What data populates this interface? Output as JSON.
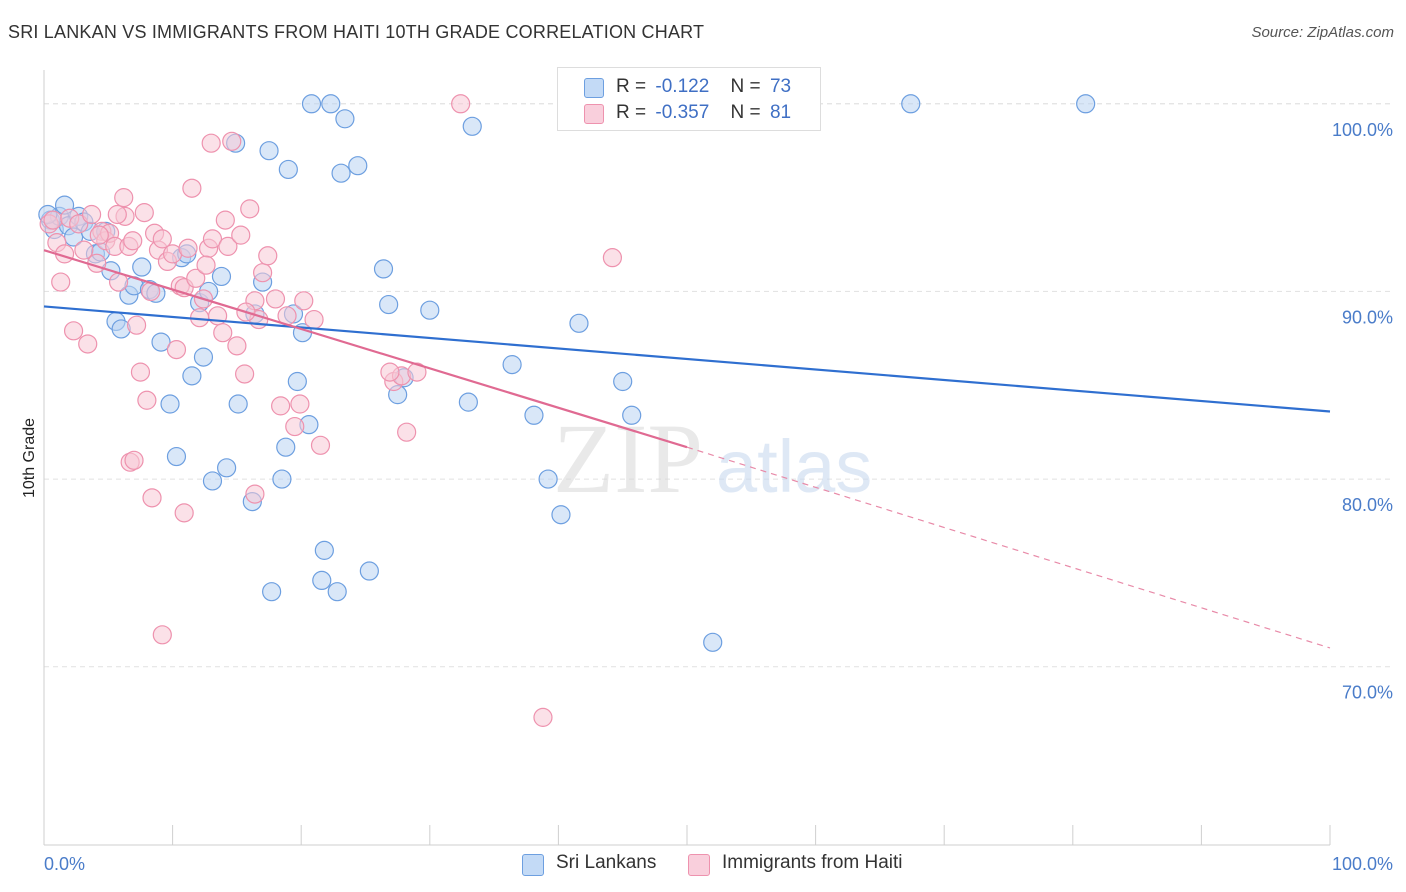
{
  "title": "SRI LANKAN VS IMMIGRANTS FROM HAITI 10TH GRADE CORRELATION CHART",
  "source": "Source: ZipAtlas.com",
  "watermark": {
    "zip": "ZIP",
    "atlas": "atlas"
  },
  "legend_top": {
    "rows": [
      {
        "r_label": "R =",
        "r_value": "-0.122",
        "n_label": "N =",
        "n_value": "73",
        "color": "#a9c8f0"
      },
      {
        "r_label": "R =",
        "r_value": "-0.357",
        "n_label": "N =",
        "n_value": "81",
        "color": "#f5b8cb"
      }
    ]
  },
  "legend_bottom": {
    "items": [
      {
        "label": "Sri Lankans",
        "color": "#a9c8f0"
      },
      {
        "label": "Immigrants from Haiti",
        "color": "#f5b8cb"
      }
    ]
  },
  "chart_data": {
    "type": "scatter",
    "title": "SRI LANKAN VS IMMIGRANTS FROM HAITI 10TH GRADE CORRELATION CHART",
    "xlabel": "",
    "ylabel": "10th Grade",
    "xlim": [
      0,
      100
    ],
    "ylim": [
      60.5,
      101.8
    ],
    "x_tick_labels": [
      "0.0%",
      "100.0%"
    ],
    "y_ticks": [
      70,
      80,
      90,
      100
    ],
    "y_tick_labels": [
      "70.0%",
      "80.0%",
      "90.0%",
      "100.0%"
    ],
    "grid": true,
    "legend_position": "top-center",
    "series": [
      {
        "name": "Sri Lankans",
        "color": "#6d9fe0",
        "fill": "#b9d3f3",
        "points": [
          [
            0.5,
            93.8
          ],
          [
            0.8,
            93.3
          ],
          [
            1.2,
            94.0
          ],
          [
            1.6,
            94.6
          ],
          [
            1.9,
            93.5
          ],
          [
            2.3,
            92.9
          ],
          [
            2.7,
            94.0
          ],
          [
            3.1,
            93.7
          ],
          [
            3.6,
            93.2
          ],
          [
            4.0,
            92.0
          ],
          [
            4.4,
            92.1
          ],
          [
            4.8,
            93.2
          ],
          [
            5.2,
            91.1
          ],
          [
            5.6,
            88.4
          ],
          [
            6.0,
            88.0
          ],
          [
            6.6,
            89.8
          ],
          [
            7.0,
            90.3
          ],
          [
            7.6,
            91.3
          ],
          [
            8.2,
            90.1
          ],
          [
            8.7,
            89.9
          ],
          [
            9.1,
            87.3
          ],
          [
            9.8,
            84.0
          ],
          [
            10.3,
            81.2
          ],
          [
            10.7,
            91.8
          ],
          [
            11.1,
            92.0
          ],
          [
            11.5,
            85.5
          ],
          [
            12.1,
            89.4
          ],
          [
            12.4,
            86.5
          ],
          [
            12.8,
            90.0
          ],
          [
            13.1,
            79.9
          ],
          [
            13.8,
            90.8
          ],
          [
            14.2,
            80.6
          ],
          [
            14.9,
            97.9
          ],
          [
            15.1,
            84.0
          ],
          [
            16.4,
            88.8
          ],
          [
            17.0,
            90.5
          ],
          [
            16.2,
            78.8
          ],
          [
            17.5,
            97.5
          ],
          [
            17.7,
            74.0
          ],
          [
            18.5,
            80.0
          ],
          [
            18.8,
            81.7
          ],
          [
            19.0,
            96.5
          ],
          [
            19.4,
            88.8
          ],
          [
            19.7,
            85.2
          ],
          [
            20.1,
            87.8
          ],
          [
            20.6,
            82.9
          ],
          [
            20.8,
            100.0
          ],
          [
            21.6,
            74.6
          ],
          [
            21.8,
            76.2
          ],
          [
            22.3,
            100.0
          ],
          [
            22.8,
            74.0
          ],
          [
            23.1,
            96.3
          ],
          [
            23.4,
            99.2
          ],
          [
            24.4,
            96.7
          ],
          [
            25.3,
            75.1
          ],
          [
            26.4,
            91.2
          ],
          [
            26.8,
            89.3
          ],
          [
            27.5,
            84.5
          ],
          [
            28.0,
            85.4
          ],
          [
            30.0,
            89.0
          ],
          [
            33.0,
            84.1
          ],
          [
            33.3,
            98.8
          ],
          [
            36.4,
            86.1
          ],
          [
            38.1,
            83.4
          ],
          [
            39.2,
            80.0
          ],
          [
            40.2,
            78.1
          ],
          [
            41.6,
            88.3
          ],
          [
            45.0,
            85.2
          ],
          [
            45.7,
            83.4
          ],
          [
            52.0,
            71.3
          ],
          [
            67.4,
            100.0
          ],
          [
            81.0,
            100.0
          ],
          [
            0.3,
            94.1
          ]
        ],
        "trend": {
          "x": [
            0,
            100
          ],
          "y": [
            89.2,
            83.6
          ]
        }
      },
      {
        "name": "Immigrants from Haiti",
        "color": "#ee92ae",
        "fill": "#f8c8d6",
        "points": [
          [
            0.4,
            93.6
          ],
          [
            0.7,
            93.8
          ],
          [
            1.0,
            92.6
          ],
          [
            1.3,
            90.5
          ],
          [
            1.6,
            92.0
          ],
          [
            2.0,
            93.9
          ],
          [
            2.3,
            87.9
          ],
          [
            2.7,
            93.6
          ],
          [
            3.1,
            92.2
          ],
          [
            3.4,
            87.2
          ],
          [
            3.7,
            94.1
          ],
          [
            4.1,
            91.5
          ],
          [
            4.5,
            93.2
          ],
          [
            4.8,
            92.7
          ],
          [
            5.1,
            93.1
          ],
          [
            5.5,
            92.4
          ],
          [
            5.8,
            90.5
          ],
          [
            6.3,
            94.0
          ],
          [
            6.6,
            92.4
          ],
          [
            6.9,
            92.7
          ],
          [
            7.2,
            88.2
          ],
          [
            7.5,
            85.7
          ],
          [
            7.8,
            94.2
          ],
          [
            8.0,
            84.2
          ],
          [
            8.3,
            90.0
          ],
          [
            8.6,
            93.1
          ],
          [
            8.9,
            92.2
          ],
          [
            9.2,
            92.8
          ],
          [
            9.6,
            91.6
          ],
          [
            10.0,
            92.0
          ],
          [
            10.3,
            86.9
          ],
          [
            10.6,
            90.3
          ],
          [
            10.9,
            90.2
          ],
          [
            11.2,
            92.3
          ],
          [
            11.5,
            95.5
          ],
          [
            11.8,
            90.7
          ],
          [
            12.1,
            88.6
          ],
          [
            12.4,
            89.6
          ],
          [
            12.8,
            92.3
          ],
          [
            13.1,
            92.8
          ],
          [
            13.5,
            88.7
          ],
          [
            13.9,
            87.8
          ],
          [
            14.3,
            92.4
          ],
          [
            14.6,
            98.0
          ],
          [
            15.0,
            87.1
          ],
          [
            15.3,
            93.0
          ],
          [
            15.6,
            85.6
          ],
          [
            16.0,
            94.4
          ],
          [
            16.4,
            89.5
          ],
          [
            16.7,
            88.5
          ],
          [
            17.0,
            91.0
          ],
          [
            17.4,
            91.9
          ],
          [
            18.0,
            89.6
          ],
          [
            18.4,
            83.9
          ],
          [
            18.9,
            88.7
          ],
          [
            19.5,
            82.8
          ],
          [
            19.9,
            84.0
          ],
          [
            20.2,
            89.5
          ],
          [
            21.0,
            88.5
          ],
          [
            21.5,
            81.8
          ],
          [
            27.2,
            85.2
          ],
          [
            27.8,
            85.5
          ],
          [
            28.2,
            82.5
          ],
          [
            29.0,
            85.7
          ],
          [
            32.4,
            100.0
          ],
          [
            44.2,
            91.8
          ],
          [
            6.2,
            95.0
          ],
          [
            6.7,
            80.9
          ],
          [
            9.2,
            71.7
          ],
          [
            10.9,
            78.2
          ],
          [
            15.7,
            88.9
          ],
          [
            16.4,
            79.2
          ],
          [
            12.6,
            91.4
          ],
          [
            5.7,
            94.1
          ],
          [
            38.8,
            67.3
          ],
          [
            13.0,
            97.9
          ],
          [
            14.1,
            93.8
          ],
          [
            7.0,
            81.0
          ],
          [
            26.9,
            85.7
          ],
          [
            8.4,
            79.0
          ],
          [
            4.3,
            93.0
          ]
        ],
        "trend": {
          "x": [
            0,
            50
          ],
          "y": [
            92.2,
            81.7
          ]
        },
        "trend_extension": {
          "x": [
            50,
            100
          ],
          "y": [
            81.7,
            71.0
          ]
        }
      }
    ]
  }
}
